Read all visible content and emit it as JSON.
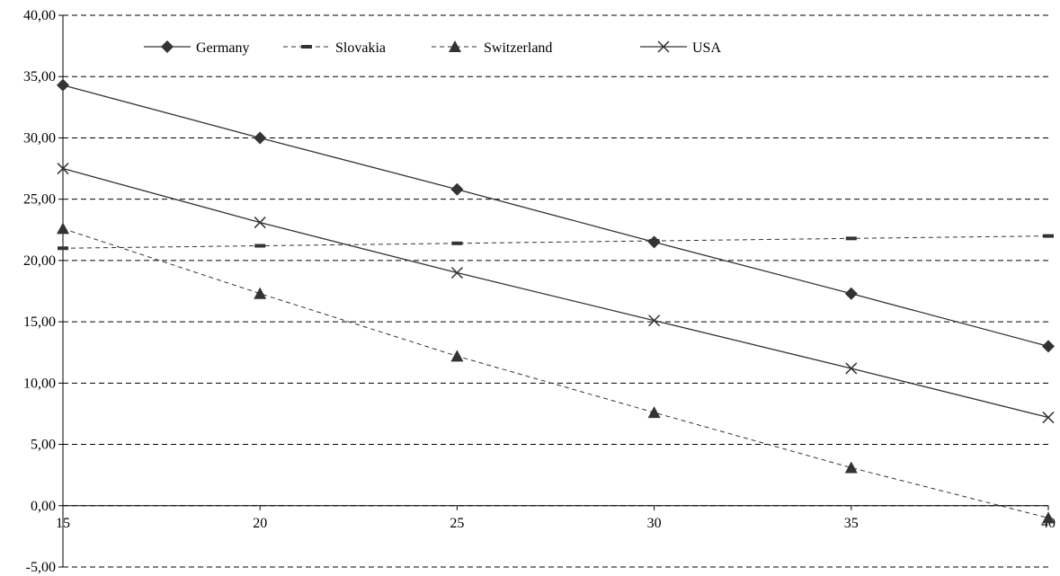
{
  "chart_data": {
    "type": "line",
    "x": [
      15,
      20,
      25,
      30,
      35,
      40
    ],
    "series": [
      {
        "name": "Germany",
        "values": [
          34.3,
          30.0,
          25.8,
          21.5,
          17.3,
          13.0
        ],
        "line_style": "solid",
        "marker": "diamond"
      },
      {
        "name": "Slovakia",
        "values": [
          21.0,
          21.2,
          21.4,
          21.6,
          21.8,
          22.0
        ],
        "line_style": "dashed",
        "marker": "dash"
      },
      {
        "name": "Switzerland",
        "values": [
          22.6,
          17.3,
          12.2,
          7.6,
          3.1,
          -1.0
        ],
        "line_style": "dashed",
        "marker": "triangle"
      },
      {
        "name": "USA",
        "values": [
          27.5,
          23.1,
          19.0,
          15.1,
          11.2,
          7.2
        ],
        "line_style": "solid",
        "marker": "x"
      }
    ],
    "yticks": [
      "40,00",
      "35,00",
      "30,00",
      "25,00",
      "20,00",
      "15,00",
      "10,00",
      "5,00",
      "0,00",
      "-5,00"
    ],
    "ytick_values": [
      40,
      35,
      30,
      25,
      20,
      15,
      10,
      5,
      0,
      -5
    ],
    "xticks": [
      "15",
      "20",
      "25",
      "30",
      "35",
      "40"
    ],
    "ylim": [
      -5,
      40
    ],
    "xlim": [
      15,
      40
    ],
    "title": "",
    "xlabel": "",
    "ylabel": "",
    "grid": "horizontal dashed",
    "legend_position": "top-left",
    "colors": {
      "line": "#333333",
      "marker": "#333333",
      "grid": "#000000"
    }
  }
}
